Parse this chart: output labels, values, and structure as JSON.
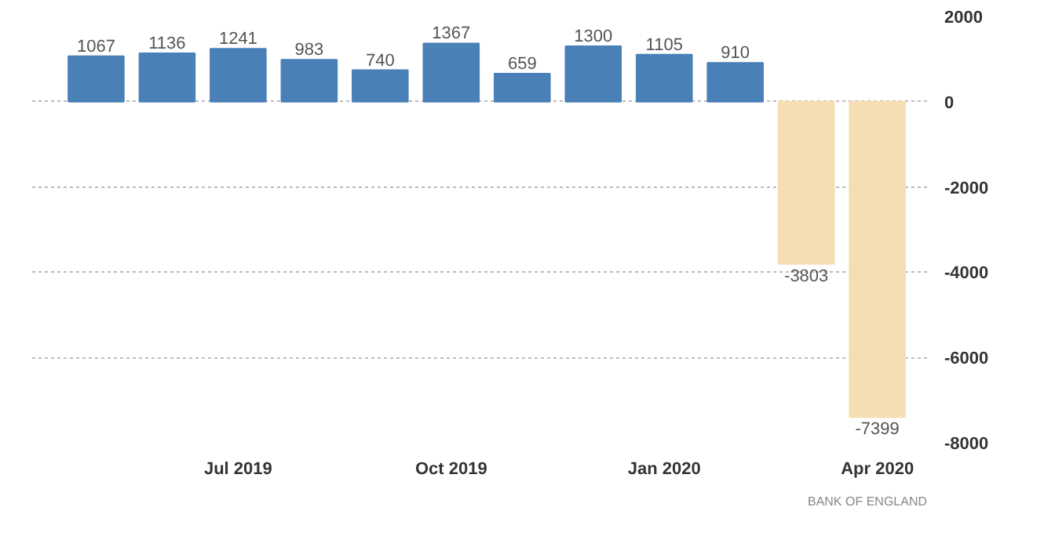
{
  "chart_data": {
    "type": "bar",
    "categories": [
      null,
      null,
      "Jul 2019",
      null,
      null,
      "Oct 2019",
      null,
      null,
      "Jan 2020",
      null,
      null,
      "Apr 2020"
    ],
    "values": [
      1067,
      1136,
      1241,
      983,
      740,
      1367,
      659,
      1300,
      1105,
      910,
      -3803,
      -7399
    ],
    "colors": [
      "#4a80b8",
      "#4a80b8",
      "#4a80b8",
      "#4a80b8",
      "#4a80b8",
      "#4a80b8",
      "#4a80b8",
      "#4a80b8",
      "#4a80b8",
      "#4a80b8",
      "#f5deb3",
      "#f5deb3"
    ],
    "ylim": [
      -8000,
      2000
    ],
    "yticks": [
      2000,
      0,
      -2000,
      -4000,
      -6000,
      -8000
    ],
    "grid": "y",
    "data_labels": true,
    "annotations": [
      "BANK OF ENGLAND"
    ]
  }
}
